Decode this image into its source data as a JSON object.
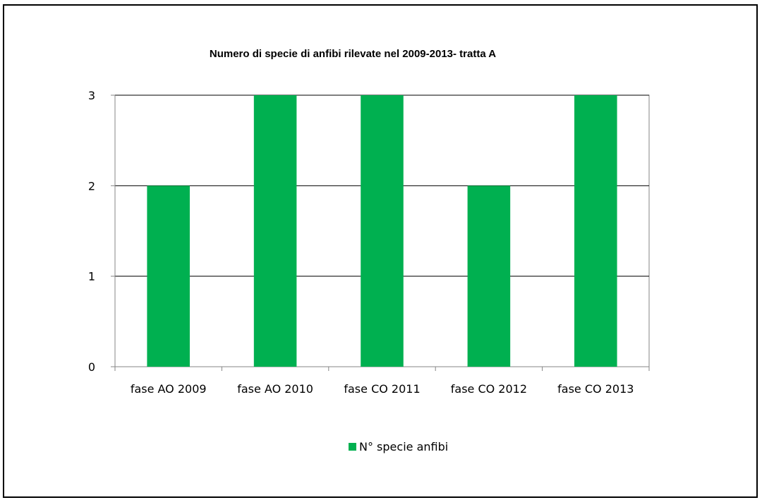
{
  "chart_data": {
    "type": "bar",
    "title": "Numero di specie di anfibi rilevate nel  2009-2013- tratta A",
    "categories": [
      "fase AO 2009",
      "fase AO 2010",
      "fase CO 2011",
      "fase CO 2012",
      "fase CO 2013"
    ],
    "series": [
      {
        "name": "N° specie anfibi",
        "values": [
          2,
          3,
          3,
          2,
          3
        ],
        "color": "#00b050"
      }
    ],
    "xlabel": "",
    "ylabel": "",
    "ylim": [
      0,
      3
    ],
    "yticks": [
      0,
      1,
      2,
      3
    ],
    "grid": true,
    "legend_position": "bottom"
  }
}
